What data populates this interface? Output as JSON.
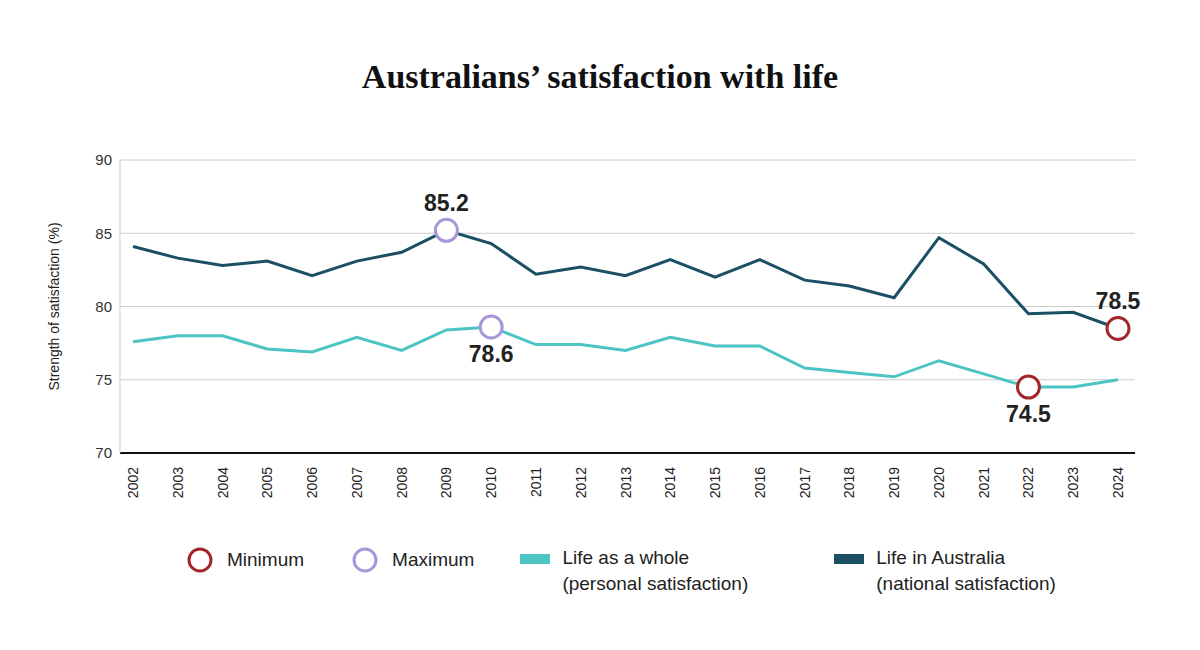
{
  "chart_data": {
    "type": "line",
    "title": "Australians’ satisfaction with life",
    "y_label": "Strength of satisfaction (%)",
    "categories": [
      "2002",
      "2003",
      "2004",
      "2005",
      "2006",
      "2007",
      "2008",
      "2009",
      "2010",
      "2011",
      "2012",
      "2013",
      "2014",
      "2015",
      "2016",
      "2017",
      "2018",
      "2019",
      "2020",
      "2021",
      "2022",
      "2023",
      "2024"
    ],
    "series": [
      {
        "name": "Life as a whole (personal satisfaction)",
        "color": "#4cc4c4",
        "values": [
          77.6,
          78.0,
          78.0,
          77.1,
          76.9,
          77.9,
          77.0,
          78.4,
          78.6,
          77.4,
          77.4,
          77.0,
          77.9,
          77.3,
          77.3,
          75.8,
          75.5,
          75.2,
          76.3,
          75.4,
          74.5,
          74.5,
          75.0
        ]
      },
      {
        "name": "Life in Australia (national satisfaction)",
        "color": "#1b4f63",
        "values": [
          84.1,
          83.3,
          82.8,
          83.1,
          82.1,
          83.1,
          83.7,
          85.2,
          84.3,
          82.2,
          82.7,
          82.1,
          83.2,
          82.0,
          83.2,
          81.8,
          81.4,
          80.6,
          84.7,
          82.9,
          79.5,
          79.6,
          78.5
        ]
      }
    ],
    "markers": [
      {
        "name": "Minimum",
        "color": "#a3262a",
        "points": [
          {
            "series": 0,
            "x": "2022"
          },
          {
            "series": 1,
            "x": "2024"
          }
        ]
      },
      {
        "name": "Maximum",
        "color": "#a996d8",
        "points": [
          {
            "series": 1,
            "x": "2009"
          },
          {
            "series": 0,
            "x": "2010"
          }
        ]
      }
    ],
    "ylim": [
      70,
      90
    ],
    "yticks": [
      70,
      75,
      80,
      85,
      90
    ],
    "grid": true,
    "legend": "bottom"
  }
}
